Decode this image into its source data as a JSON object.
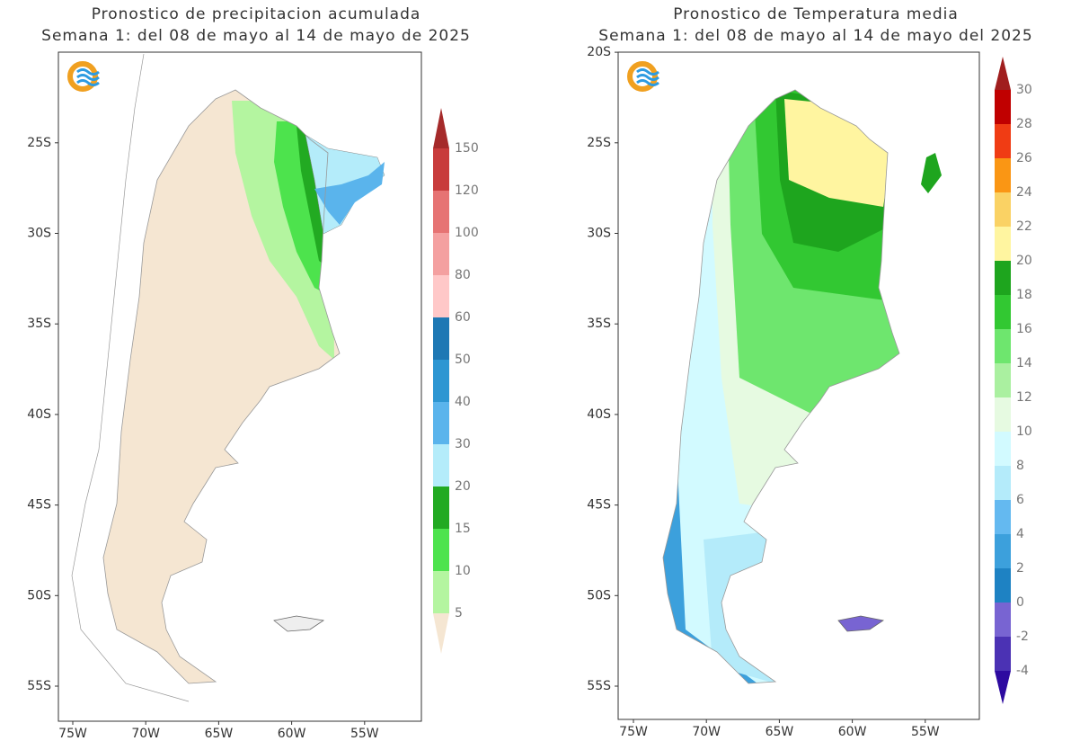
{
  "panels": [
    {
      "title": [
        "Pronostico de precipitacion acumulada",
        "Semana 1: del 08 de mayo al 14 de mayo de 2025"
      ],
      "lat_ticks": [
        "25S",
        "30S",
        "35S",
        "40S",
        "45S",
        "50S",
        "55S"
      ],
      "lon_ticks": [
        "75W",
        "70W",
        "65W",
        "60W",
        "55W"
      ],
      "colorbar": {
        "labels": [
          5,
          10,
          15,
          20,
          30,
          40,
          50,
          60,
          80,
          100,
          120,
          150
        ],
        "colors": [
          "#f5e6d2",
          "#b4f5a0",
          "#4de34d",
          "#22aa22",
          "#b4ecfa",
          "#5ab4ec",
          "#2d96d2",
          "#1e78b4",
          "#ffc8c8",
          "#f4a0a0",
          "#e67373",
          "#c83c3c",
          "#a52a2a"
        ]
      }
    },
    {
      "title": [
        "Pronostico de Temperatura media",
        "Semana 1: del 08 de mayo al 14 de mayo del 2025"
      ],
      "lat_ticks": [
        "20S",
        "25S",
        "30S",
        "35S",
        "40S",
        "45S",
        "50S",
        "55S"
      ],
      "lon_ticks": [
        "75W",
        "70W",
        "65W",
        "60W",
        "55W"
      ],
      "colorbar": {
        "labels": [
          -4,
          -2,
          0,
          2,
          4,
          6,
          8,
          10,
          12,
          14,
          16,
          18,
          20,
          22,
          24,
          26,
          28,
          30
        ],
        "colors": [
          "#2d0aa0",
          "#4b32b4",
          "#7864d2",
          "#1e82c3",
          "#3ca0dc",
          "#64b9f0",
          "#b4ebfa",
          "#d2faff",
          "#e6fae1",
          "#aaf0a0",
          "#6ee66e",
          "#32c832",
          "#1ea51e",
          "#fff5a0",
          "#fad264",
          "#fa9614",
          "#f03c14",
          "#c00000",
          "#a01e1e"
        ]
      }
    }
  ]
}
